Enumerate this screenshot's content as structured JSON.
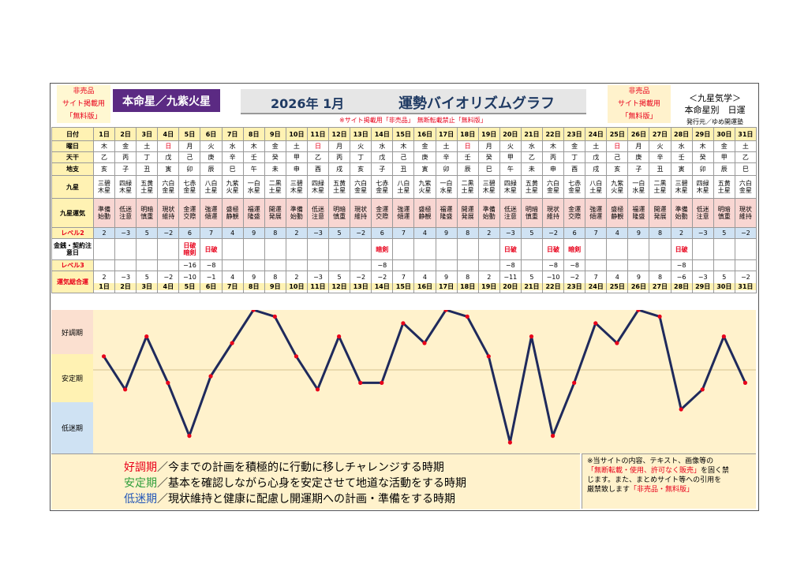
{
  "header": {
    "left_red": [
      "非売品",
      "サイト掲載用",
      "「無料版」"
    ],
    "honmei": "本命星／九紫火星",
    "year_month": "2026年 1月",
    "title": "運勢バイオリズムグラフ",
    "right_red": [
      "非売品",
      "サイト掲載用",
      "「無料版」"
    ],
    "right_title": "＜九星気学＞",
    "right_sub": "本命星別　日運",
    "publisher": "発行元／ゆめ開運塾",
    "notice": "※サイト掲載用「非売品」　無断転載禁止「無料版」"
  },
  "row_labels": {
    "day": "日付",
    "weekday": "曜日",
    "stem": "天干",
    "branch": "地支",
    "star": "九星",
    "fortune": "九星運気",
    "level2": "レベル2",
    "warning": "金銭・契約注意日",
    "level3": "レベル3",
    "total": "運気総合運"
  },
  "days": [
    "1日",
    "2日",
    "3日",
    "4日",
    "5日",
    "6日",
    "7日",
    "8日",
    "9日",
    "10日",
    "11日",
    "12日",
    "13日",
    "14日",
    "15日",
    "16日",
    "17日",
    "18日",
    "19日",
    "20日",
    "21日",
    "22日",
    "23日",
    "24日",
    "25日",
    "26日",
    "27日",
    "28日",
    "29日",
    "30日",
    "31日"
  ],
  "weekday": [
    "木",
    "金",
    "土",
    "日",
    "月",
    "火",
    "水",
    "木",
    "金",
    "土",
    "日",
    "月",
    "火",
    "水",
    "木",
    "金",
    "土",
    "日",
    "月",
    "火",
    "水",
    "木",
    "金",
    "土",
    "日",
    "月",
    "火",
    "水",
    "木",
    "金",
    "土"
  ],
  "stem": [
    "乙",
    "丙",
    "丁",
    "戊",
    "己",
    "庚",
    "辛",
    "壬",
    "癸",
    "甲",
    "乙",
    "丙",
    "丁",
    "戊",
    "己",
    "庚",
    "辛",
    "壬",
    "癸",
    "甲",
    "乙",
    "丙",
    "丁",
    "戊",
    "己",
    "庚",
    "辛",
    "壬",
    "癸",
    "甲",
    "乙"
  ],
  "branch": [
    "亥",
    "子",
    "丑",
    "寅",
    "卯",
    "辰",
    "巳",
    "午",
    "未",
    "申",
    "酉",
    "戌",
    "亥",
    "子",
    "丑",
    "寅",
    "卯",
    "辰",
    "巳",
    "午",
    "未",
    "申",
    "酉",
    "戌",
    "亥",
    "子",
    "丑",
    "寅",
    "卯",
    "辰",
    "巳"
  ],
  "star": [
    [
      "三碧",
      "木星"
    ],
    [
      "四緑",
      "木星"
    ],
    [
      "五黄",
      "土星"
    ],
    [
      "六白",
      "金星"
    ],
    [
      "七赤",
      "金星"
    ],
    [
      "八白",
      "土星"
    ],
    [
      "九紫",
      "火星"
    ],
    [
      "一白",
      "水星"
    ],
    [
      "二黒",
      "土星"
    ],
    [
      "三碧",
      "木星"
    ],
    [
      "四緑",
      "木星"
    ],
    [
      "五黄",
      "土星"
    ],
    [
      "六白",
      "金星"
    ],
    [
      "七赤",
      "金星"
    ],
    [
      "八白",
      "土星"
    ],
    [
      "九紫",
      "火星"
    ],
    [
      "一白",
      "水星"
    ],
    [
      "二黒",
      "土星"
    ],
    [
      "三碧",
      "木星"
    ],
    [
      "四緑",
      "木星"
    ],
    [
      "五黄",
      "土星"
    ],
    [
      "六白",
      "金星"
    ],
    [
      "七赤",
      "金星"
    ],
    [
      "八白",
      "土星"
    ],
    [
      "九紫",
      "火星"
    ],
    [
      "一白",
      "水星"
    ],
    [
      "二黒",
      "土星"
    ],
    [
      "三碧",
      "木星"
    ],
    [
      "四緑",
      "木星"
    ],
    [
      "五黄",
      "土星"
    ],
    [
      "六白",
      "金星"
    ]
  ],
  "fortune": [
    [
      "準備",
      "始動"
    ],
    [
      "低迷",
      "注意"
    ],
    [
      "明暗",
      "慎重"
    ],
    [
      "現状",
      "維持"
    ],
    [
      "金運",
      "交際"
    ],
    [
      "強運",
      "傾運"
    ],
    [
      "盛極",
      "静観"
    ],
    [
      "福運",
      "隆盛"
    ],
    [
      "開運",
      "発展"
    ],
    [
      "準備",
      "始動"
    ],
    [
      "低迷",
      "注意"
    ],
    [
      "明暗",
      "慎重"
    ],
    [
      "現状",
      "維持"
    ],
    [
      "金運",
      "交際"
    ],
    [
      "強運",
      "傾運"
    ],
    [
      "盛極",
      "静観"
    ],
    [
      "福運",
      "隆盛"
    ],
    [
      "開運",
      "発展"
    ],
    [
      "準備",
      "始動"
    ],
    [
      "低迷",
      "注意"
    ],
    [
      "明暗",
      "慎重"
    ],
    [
      "現状",
      "維持"
    ],
    [
      "金運",
      "交際"
    ],
    [
      "強運",
      "傾運"
    ],
    [
      "盛極",
      "静観"
    ],
    [
      "福運",
      "隆盛"
    ],
    [
      "開運",
      "発展"
    ],
    [
      "準備",
      "始動"
    ],
    [
      "低迷",
      "注意"
    ],
    [
      "明暗",
      "慎重"
    ],
    [
      "現状",
      "維持"
    ]
  ],
  "level2": [
    "2",
    "−3",
    "5",
    "−2",
    "6",
    "7",
    "4",
    "9",
    "8",
    "2",
    "−3",
    "5",
    "−2",
    "6",
    "7",
    "4",
    "9",
    "8",
    "2",
    "−3",
    "5",
    "−2",
    "6",
    "7",
    "4",
    "9",
    "8",
    "2",
    "−3",
    "5",
    "−2"
  ],
  "warning": [
    "",
    "",
    "",
    "",
    [
      "日破",
      "暗剣"
    ],
    "日破",
    "",
    "",
    "",
    "",
    "",
    "",
    "",
    "暗剣",
    "",
    "",
    "",
    "",
    "",
    "日破",
    "",
    "日破",
    "暗剣",
    "",
    "",
    "",
    "",
    "日破",
    "",
    "",
    ""
  ],
  "level3": [
    "",
    "",
    "",
    "",
    "−16",
    "−8",
    "",
    "",
    "",
    "",
    "",
    "",
    "",
    "−8",
    "",
    "",
    "",
    "",
    "",
    "−8",
    "",
    "−8",
    "−8",
    "",
    "",
    "",
    "",
    "−8",
    "",
    "",
    ""
  ],
  "total": [
    "2",
    "−3",
    "5",
    "−2",
    "−10",
    "−1",
    "4",
    "9",
    "8",
    "2",
    "−3",
    "5",
    "−2",
    "−2",
    "7",
    "4",
    "9",
    "8",
    "2",
    "−11",
    "5",
    "−10",
    "−2",
    "7",
    "4",
    "9",
    "8",
    "−6",
    "−3",
    "5",
    "−2"
  ],
  "bands": {
    "good": "好調期",
    "stable": "安定期",
    "low": "低迷期"
  },
  "chart_data": {
    "type": "line",
    "x": [
      1,
      2,
      3,
      4,
      5,
      6,
      7,
      8,
      9,
      10,
      11,
      12,
      13,
      14,
      15,
      16,
      17,
      18,
      19,
      20,
      21,
      22,
      23,
      24,
      25,
      26,
      27,
      28,
      29,
      30,
      31
    ],
    "values": [
      2,
      -3,
      5,
      -2,
      -10,
      -1,
      4,
      9,
      8,
      2,
      -3,
      5,
      -2,
      -2,
      7,
      4,
      9,
      8,
      2,
      -11,
      5,
      -10,
      -2,
      7,
      4,
      9,
      8,
      -6,
      -3,
      5,
      -2
    ],
    "ylim": [
      -11,
      9
    ],
    "line_color": "#1f2a5c",
    "marker_color": "#e8001a"
  },
  "legend": [
    {
      "key": "好調期",
      "color": "#e8001a",
      "text": "／今までの計画を積極的に行動に移しチャレンジする時期"
    },
    {
      "key": "安定期",
      "color": "#2e9e3b",
      "text": "／基本を確認しながら心身を安定させて地道な活動をする時期"
    },
    {
      "key": "低迷期",
      "color": "#2357b8",
      "text": "／現状維持と健康に配慮し開運期への計画・準備をする時期"
    }
  ],
  "note": {
    "l1": "※当サイトの内容、テキスト、画像等の",
    "l2": "「無断転載・使用、許可なく販売」",
    "l2b": "を固く禁",
    "l3": "じます。また、まとめサイト等への引用を",
    "l4": "厳禁致します",
    "l4b": "「非売品・無料版」"
  }
}
